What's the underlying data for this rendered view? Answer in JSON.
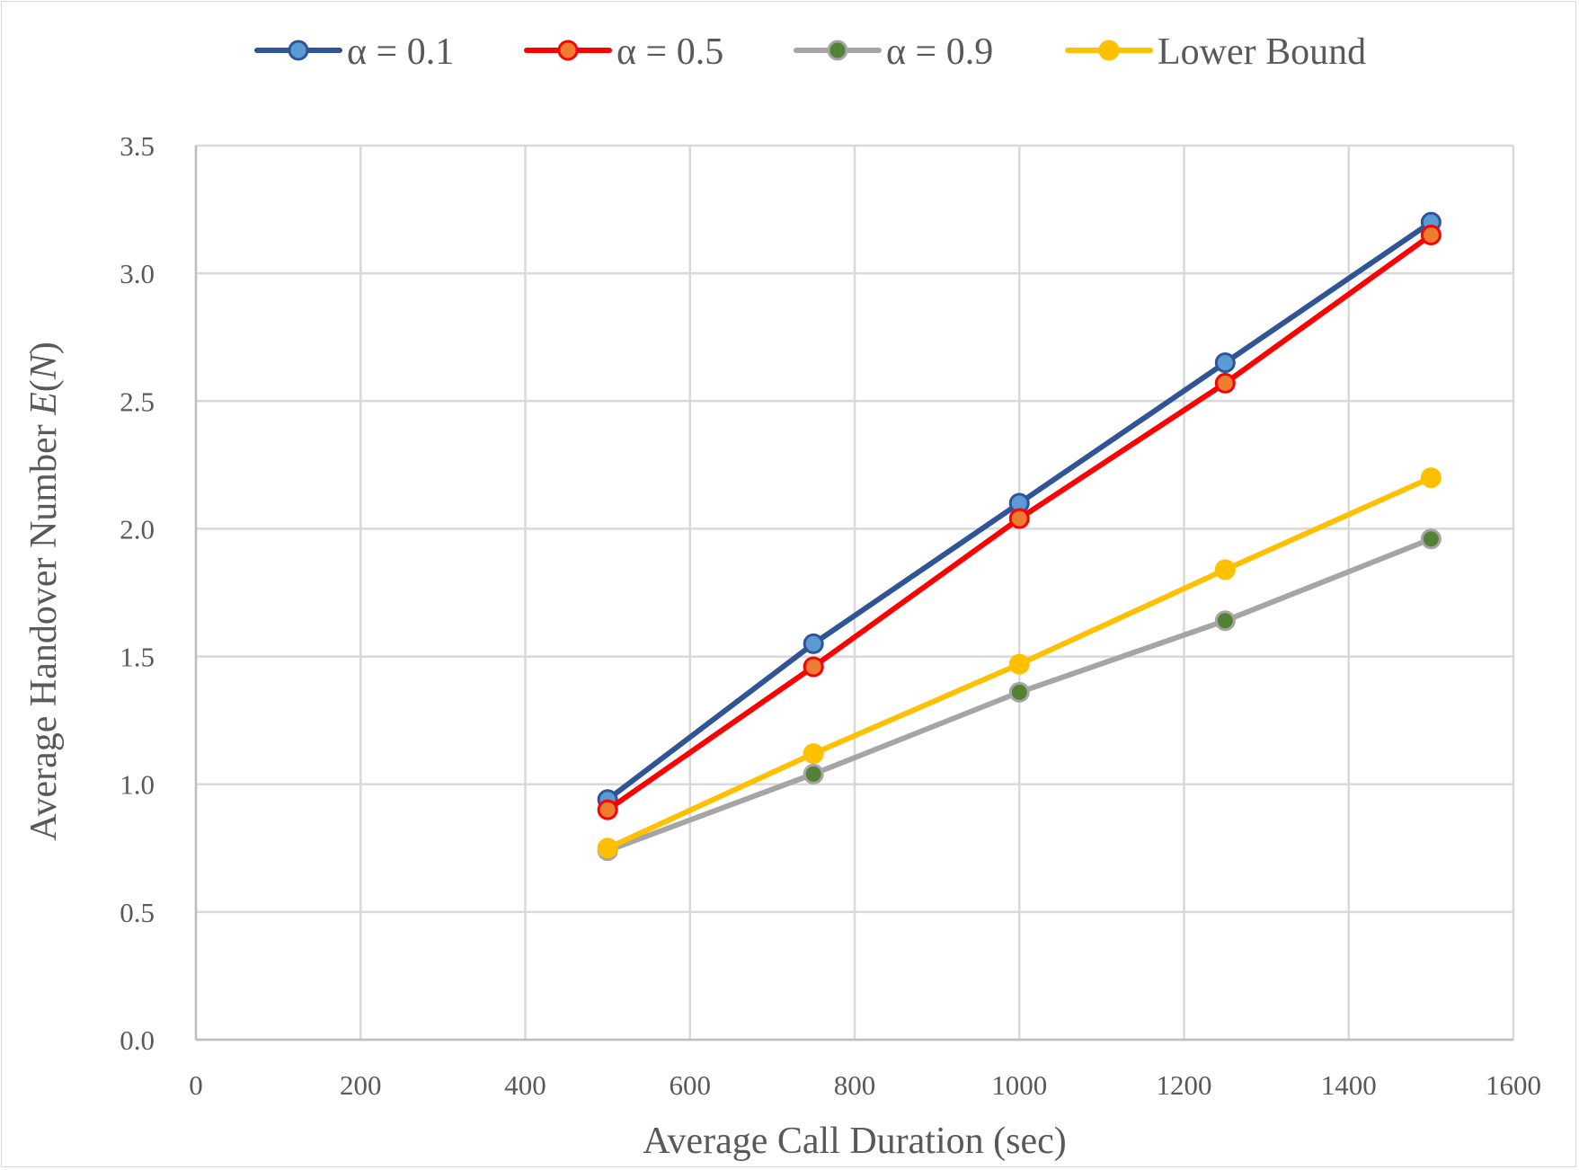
{
  "chart_data": {
    "type": "line",
    "title": "",
    "xlabel": "Average Call Duration (sec)",
    "ylabel_prefix": "Average Handover Number ",
    "ylabel_italic": "E",
    "ylabel_paren_open": "(",
    "ylabel_italic2": "N",
    "ylabel_paren_close": ")",
    "xlim": [
      0,
      1600
    ],
    "ylim": [
      0,
      3.5
    ],
    "xticks": [
      0,
      200,
      400,
      600,
      800,
      1000,
      1200,
      1400,
      1600
    ],
    "yticks": [
      0.0,
      0.5,
      1.0,
      1.5,
      2.0,
      2.5,
      3.0,
      3.5
    ],
    "xtick_labels": [
      "0",
      "200",
      "400",
      "600",
      "800",
      "1000",
      "1200",
      "1400",
      "1600"
    ],
    "ytick_labels": [
      "0.0",
      "0.5",
      "1.0",
      "1.5",
      "2.0",
      "2.5",
      "3.0",
      "3.5"
    ],
    "grid": true,
    "legend_position": "top",
    "x": [
      500,
      750,
      1000,
      1250,
      1500
    ],
    "series": [
      {
        "name": "α = 0.1",
        "values": [
          0.94,
          1.55,
          2.1,
          2.65,
          3.2
        ],
        "line_color": "#2f5597",
        "marker_fill": "#5b9bd5",
        "marker_stroke": "#2f5597"
      },
      {
        "name": "α = 0.5",
        "values": [
          0.9,
          1.46,
          2.04,
          2.57,
          3.15
        ],
        "line_color": "#ff0000",
        "marker_fill": "#ed7d31",
        "marker_stroke": "#ff0000"
      },
      {
        "name": "α = 0.9",
        "values": [
          0.74,
          1.04,
          1.36,
          1.64,
          1.96
        ],
        "line_color": "#a5a5a5",
        "marker_fill": "#548235",
        "marker_stroke": "#a5a5a5"
      },
      {
        "name": "Lower Bound",
        "values": [
          0.75,
          1.12,
          1.47,
          1.84,
          2.2
        ],
        "line_color": "#ffc000",
        "marker_fill": "#ffc000",
        "marker_stroke": "#ffc000"
      }
    ]
  },
  "colors": {
    "grid": "#d9d9d9",
    "axis_text": "#595959",
    "border": "#d9d9d9"
  }
}
